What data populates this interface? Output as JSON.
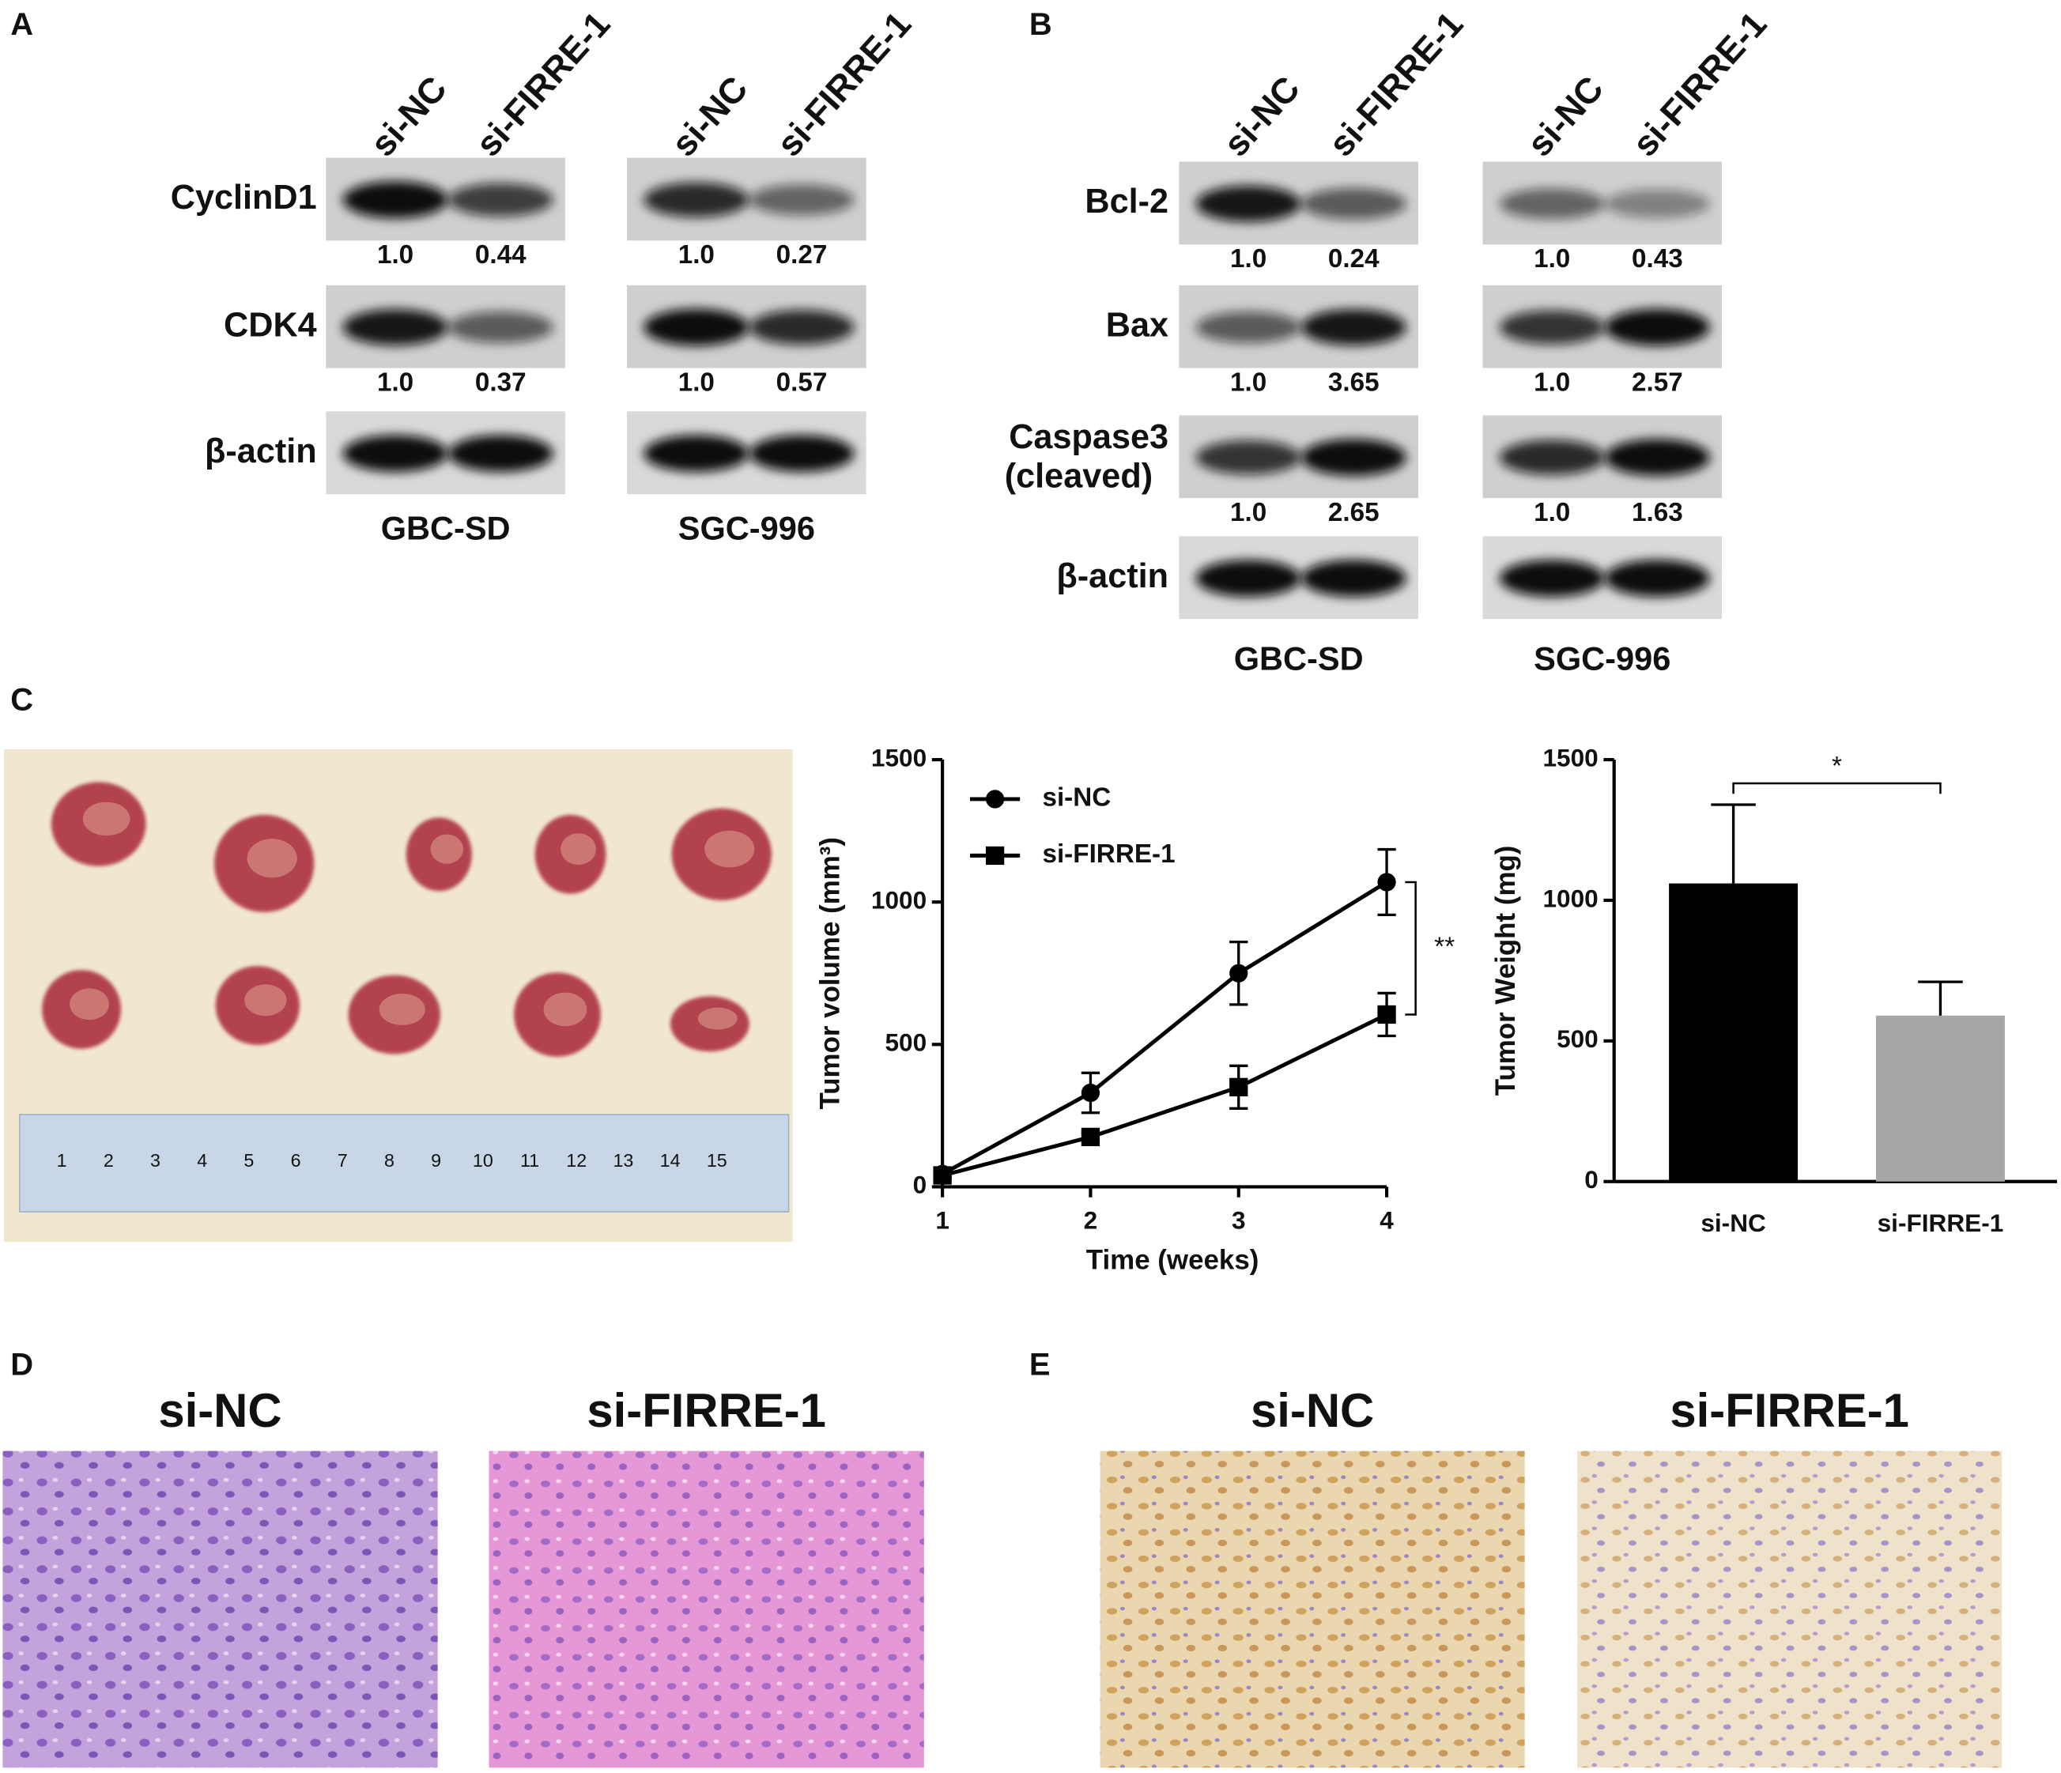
{
  "panel_labels": [
    "A",
    "B",
    "C",
    "D",
    "E"
  ],
  "panel_a": {
    "groups": [
      {
        "cell_line": "GBC-SD",
        "lanes": [
          "si-NC",
          "si-FIRRE-1"
        ]
      },
      {
        "cell_line": "SGC-996",
        "lanes": [
          "si-NC",
          "si-FIRRE-1"
        ]
      }
    ],
    "rows": [
      {
        "protein": "CyclinD1",
        "ratios": [
          [
            "1.0",
            "0.44"
          ],
          [
            "1.0",
            "0.27"
          ]
        ]
      },
      {
        "protein": "CDK4",
        "ratios": [
          [
            "1.0",
            "0.37"
          ],
          [
            "1.0",
            "0.57"
          ]
        ]
      },
      {
        "protein": "β-actin"
      }
    ]
  },
  "panel_b": {
    "groups": [
      {
        "cell_line": "GBC-SD",
        "lanes": [
          "si-NC",
          "si-FIRRE-1"
        ]
      },
      {
        "cell_line": "SGC-996",
        "lanes": [
          "si-NC",
          "si-FIRRE-1"
        ]
      }
    ],
    "rows": [
      {
        "protein": "Bcl-2",
        "ratios": [
          [
            "1.0",
            "0.24"
          ],
          [
            "1.0",
            "0.43"
          ]
        ]
      },
      {
        "protein": "Bax",
        "ratios": [
          [
            "1.0",
            "3.65"
          ],
          [
            "1.0",
            "2.57"
          ]
        ]
      },
      {
        "protein": "Caspase3",
        "note": "(cleaved)",
        "ratios": [
          [
            "1.0",
            "2.65"
          ],
          [
            "1.0",
            "1.63"
          ]
        ]
      },
      {
        "protein": "β-actin"
      }
    ]
  },
  "panel_c": {
    "ruler_labels": [
      "1",
      "2",
      "3",
      "4",
      "5",
      "6",
      "7",
      "8",
      "9",
      "10",
      "11",
      "12",
      "13",
      "14",
      "15"
    ]
  },
  "chart_data": [
    {
      "type": "line",
      "x_label": "Time (weeks)",
      "y_label": "Tumor volume  (mm³)",
      "x": [
        1,
        2,
        3,
        4
      ],
      "xlim": [
        1,
        4
      ],
      "xticks": [
        1,
        2,
        3,
        4
      ],
      "ylim": [
        0,
        1500
      ],
      "yticks": [
        0,
        500,
        1000,
        1500
      ],
      "legend": "top-left",
      "significance": "**",
      "series": [
        {
          "name": "si-NC",
          "color": "#000000",
          "marker": "circle",
          "values": [
            45,
            330,
            750,
            1070
          ],
          "errors": [
            10,
            70,
            110,
            115
          ]
        },
        {
          "name": "si-FIRRE-1",
          "color": "#000000",
          "marker": "square",
          "values": [
            40,
            175,
            350,
            605
          ],
          "errors": [
            10,
            15,
            75,
            75
          ]
        }
      ]
    },
    {
      "type": "bar",
      "y_label": "Tumor Weight (mg)",
      "categories": [
        "si-NC",
        "si-FIRRE-1"
      ],
      "values": [
        1060,
        590
      ],
      "errors": [
        280,
        120
      ],
      "colors": [
        "#000000",
        "#a6a6a8"
      ],
      "ylim": [
        0,
        1500
      ],
      "yticks": [
        0,
        500,
        1000,
        1500
      ],
      "significance": "*"
    }
  ],
  "panel_d": {
    "conditions": [
      "si-NC",
      "si-FIRRE-1"
    ]
  },
  "panel_e": {
    "conditions": [
      "si-NC",
      "si-FIRRE-1"
    ]
  }
}
